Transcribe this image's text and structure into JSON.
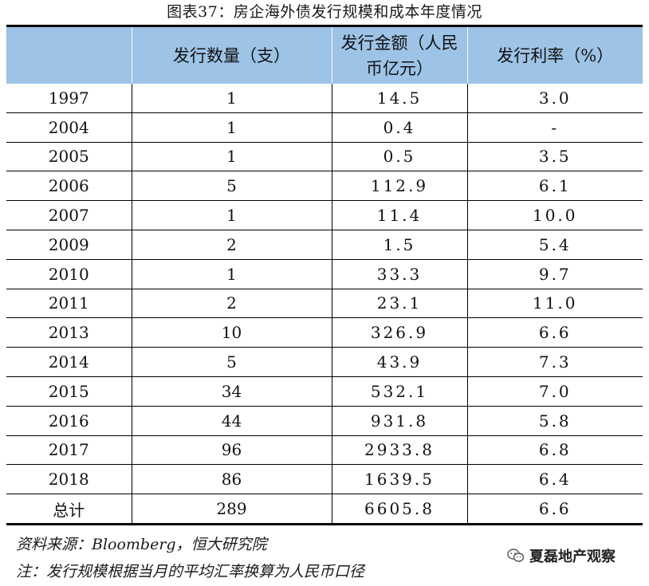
{
  "title": "图表37：房企海外债发行规模和成本年度情况",
  "table": {
    "headers": [
      "",
      "发行数量（支）",
      "发行金额（人民币亿元）",
      "发行利率（%）"
    ],
    "rows": [
      [
        "1997",
        "1",
        "14.5",
        "3.0"
      ],
      [
        "2004",
        "1",
        "0.4",
        "-"
      ],
      [
        "2005",
        "1",
        "0.5",
        "3.5"
      ],
      [
        "2006",
        "5",
        "112.9",
        "6.1"
      ],
      [
        "2007",
        "1",
        "11.4",
        "10.0"
      ],
      [
        "2009",
        "2",
        "1.5",
        "5.4"
      ],
      [
        "2010",
        "1",
        "33.3",
        "9.7"
      ],
      [
        "2011",
        "2",
        "23.1",
        "11.0"
      ],
      [
        "2013",
        "10",
        "326.9",
        "6.6"
      ],
      [
        "2014",
        "5",
        "43.9",
        "7.3"
      ],
      [
        "2015",
        "34",
        "532.1",
        "7.0"
      ],
      [
        "2016",
        "44",
        "931.8",
        "5.8"
      ],
      [
        "2017",
        "96",
        "2933.8",
        "6.8"
      ],
      [
        "2018",
        "86",
        "1639.5",
        "6.4"
      ],
      [
        "总计",
        "289",
        "6605.8",
        "6.6"
      ]
    ]
  },
  "source": "资料来源：Bloomberg，恒大研究院",
  "note": "注：发行规模根据当月的平均汇率换算为人民币口径",
  "watermark": {
    "icon": "wechat-icon",
    "text": "夏磊地产观察"
  },
  "colors": {
    "header_bg": "#9dc3e6",
    "rule": "#000000"
  }
}
